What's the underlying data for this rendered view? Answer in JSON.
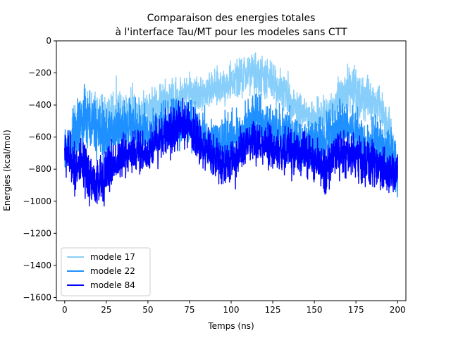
{
  "chart_data": {
    "type": "line",
    "title_lines": [
      "Comparaison des energies totales",
      "à l'interface Tau/MT pour les modeles sans CTT"
    ],
    "xlabel": "Temps (ns)",
    "ylabel": "Energies (kcal/mol)",
    "xlim": [
      -5,
      205
    ],
    "ylim": [
      -1620,
      0
    ],
    "x_ticks": [
      0,
      25,
      50,
      75,
      100,
      125,
      150,
      175,
      200
    ],
    "y_ticks": [
      0,
      -200,
      -400,
      -600,
      -800,
      -1000,
      -1200,
      -1400,
      -1600
    ],
    "legend_position": "lower-left",
    "grid": false,
    "series": [
      {
        "name": "modele 17",
        "color": "#87cefa",
        "x": [
          0,
          5,
          10,
          15,
          20,
          25,
          30,
          35,
          40,
          45,
          50,
          55,
          60,
          65,
          70,
          75,
          80,
          85,
          90,
          95,
          100,
          105,
          110,
          115,
          120,
          125,
          130,
          135,
          140,
          145,
          150,
          155,
          160,
          165,
          170,
          175,
          180,
          185,
          190,
          195,
          200
        ],
        "values": [
          -720,
          -600,
          -500,
          -460,
          -480,
          -470,
          -440,
          -450,
          -420,
          -460,
          -430,
          -400,
          -380,
          -360,
          -340,
          -320,
          -330,
          -320,
          -300,
          -280,
          -260,
          -240,
          -200,
          -220,
          -230,
          -260,
          -300,
          -360,
          -420,
          -460,
          -500,
          -470,
          -430,
          -360,
          -300,
          -320,
          -350,
          -390,
          -420,
          -520,
          -820
        ],
        "band": [
          120,
          250,
          240,
          220,
          230,
          240,
          230,
          230,
          220,
          230,
          200,
          190,
          180,
          170,
          170,
          160,
          160,
          160,
          160,
          160,
          170,
          190,
          200,
          200,
          200,
          190,
          180,
          180,
          170,
          170,
          170,
          170,
          180,
          200,
          220,
          220,
          220,
          200,
          190,
          170,
          140
        ]
      },
      {
        "name": "modele 22",
        "color": "#1e90ff",
        "x": [
          0,
          5,
          10,
          15,
          20,
          25,
          30,
          35,
          40,
          45,
          50,
          55,
          60,
          65,
          70,
          75,
          80,
          85,
          90,
          95,
          100,
          105,
          110,
          115,
          120,
          125,
          130,
          135,
          140,
          145,
          150,
          155,
          160,
          165,
          170,
          175,
          180,
          185,
          190,
          195,
          200
        ],
        "values": [
          -700,
          -620,
          -520,
          -500,
          -560,
          -600,
          -560,
          -540,
          -540,
          -560,
          -600,
          -560,
          -540,
          -520,
          -520,
          -500,
          -560,
          -620,
          -650,
          -640,
          -620,
          -580,
          -520,
          -480,
          -540,
          -560,
          -560,
          -600,
          -640,
          -660,
          -640,
          -620,
          -560,
          -520,
          -540,
          -580,
          -640,
          -640,
          -640,
          -680,
          -800
        ],
        "band": [
          220,
          280,
          280,
          270,
          260,
          260,
          250,
          240,
          240,
          240,
          240,
          230,
          230,
          230,
          220,
          220,
          230,
          240,
          240,
          240,
          240,
          230,
          230,
          220,
          220,
          220,
          220,
          230,
          230,
          230,
          230,
          230,
          220,
          220,
          220,
          220,
          220,
          230,
          230,
          230,
          220
        ]
      },
      {
        "name": "modele 84",
        "color": "#0000ff",
        "x": [
          0,
          5,
          10,
          15,
          20,
          25,
          30,
          35,
          40,
          45,
          50,
          55,
          60,
          65,
          70,
          75,
          80,
          85,
          90,
          95,
          100,
          105,
          110,
          115,
          120,
          125,
          130,
          135,
          140,
          145,
          150,
          155,
          160,
          165,
          170,
          175,
          180,
          185,
          190,
          195,
          200
        ],
        "values": [
          -680,
          -760,
          -800,
          -850,
          -900,
          -820,
          -760,
          -720,
          -680,
          -700,
          -700,
          -620,
          -580,
          -560,
          -520,
          -540,
          -620,
          -680,
          -720,
          -760,
          -760,
          -700,
          -660,
          -640,
          -660,
          -680,
          -700,
          -680,
          -680,
          -700,
          -760,
          -800,
          -760,
          -700,
          -700,
          -720,
          -760,
          -760,
          -800,
          -800,
          -820
        ],
        "band": [
          220,
          230,
          250,
          260,
          240,
          230,
          220,
          210,
          210,
          210,
          210,
          210,
          200,
          200,
          200,
          200,
          210,
          210,
          210,
          210,
          210,
          210,
          200,
          200,
          200,
          210,
          210,
          210,
          210,
          210,
          210,
          210,
          210,
          210,
          210,
          210,
          210,
          210,
          210,
          210,
          200
        ]
      }
    ]
  }
}
